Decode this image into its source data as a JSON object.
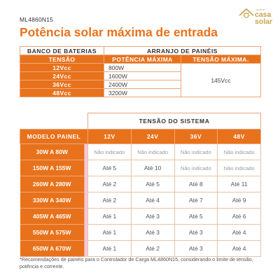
{
  "header": {
    "model_code": "ML4860N15",
    "title": "Potência solar máxima de entrada",
    "logo": {
      "small_text": "minha",
      "line1": "casa",
      "line2": "solar",
      "color": "#c9a24a"
    }
  },
  "colors": {
    "accent": "#e8721c",
    "border": "#e8a67a",
    "stripe": "#f4c7df"
  },
  "table1": {
    "group_left": "BANCO DE BATERIAS",
    "group_right": "ARRANJO DE PAINÉIS",
    "col_voltage": "TENSÃO",
    "col_power": "POTÊNCIA MÁXIMA",
    "col_max_voltage": "TENSÃO MÁXIMA.",
    "max_voltage_value": "145Vcc",
    "rows": [
      {
        "voltage": "12Vcc",
        "power": "800W"
      },
      {
        "voltage": "24Vcc",
        "power": "1600W"
      },
      {
        "voltage": "36Vcc",
        "power": "2400W"
      },
      {
        "voltage": "48Vcc",
        "power": "3200W"
      }
    ]
  },
  "table2": {
    "system_voltage_header": "TENSÃO DO SISTEMA",
    "model_header": "MODELO PAINEL",
    "columns": [
      "12V",
      "24V",
      "36V",
      "48V"
    ],
    "rows": [
      {
        "model": "30W A 80W",
        "values": [
          "Não indicado",
          "Não indicado",
          "Não indicado",
          "Não indicado"
        ]
      },
      {
        "model": "150W A 155W",
        "values": [
          "Até 5",
          "Até 10",
          "Não indicado",
          "Não indicado"
        ]
      },
      {
        "model": "260W A 280W",
        "values": [
          "Até 2",
          "Até 5",
          "Até 8",
          "Até 11"
        ]
      },
      {
        "model": "330W A 340W",
        "values": [
          "Até 2",
          "Até 4",
          "Até 7",
          "Até 9"
        ]
      },
      {
        "model": "405W A 465W",
        "values": [
          "Até 1",
          "Até 3",
          "Até 5",
          "Até 6"
        ]
      },
      {
        "model": "550W A 575W",
        "values": [
          "Até 1",
          "Até 3",
          "Até 3",
          "Até 4"
        ]
      },
      {
        "model": "650W A 670W",
        "values": [
          "Até 1",
          "Até 2",
          "Até 3",
          "Até 4"
        ]
      }
    ]
  },
  "footnote": "*Recomendações de painéis para o Controlador de Carga ML4860N15, considerando o limite de tensão, potência e corrente."
}
